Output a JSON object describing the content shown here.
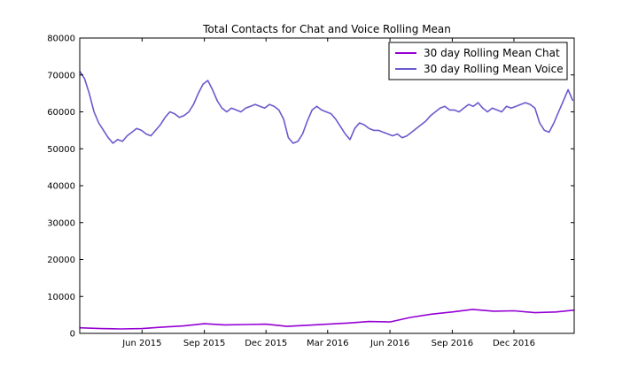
{
  "chart_data": {
    "type": "line",
    "title": "Total Contacts for Chat and Voice Rolling Mean",
    "xlabel": "",
    "ylabel": "",
    "xlim": [
      "2015-03-01",
      "2017-02-28"
    ],
    "ylim": [
      0,
      80000
    ],
    "grid": false,
    "legend_placement": "top-right",
    "y_ticks": [
      0,
      10000,
      20000,
      30000,
      40000,
      50000,
      60000,
      70000,
      80000
    ],
    "x_ticks": [
      {
        "date": "2015-06-01",
        "label": "Jun 2015"
      },
      {
        "date": "2015-09-01",
        "label": "Sep 2015"
      },
      {
        "date": "2015-12-01",
        "label": "Dec 2015"
      },
      {
        "date": "2016-03-01",
        "label": "Mar 2016"
      },
      {
        "date": "2016-06-01",
        "label": "Jun 2016"
      },
      {
        "date": "2016-09-01",
        "label": "Sep 2016"
      },
      {
        "date": "2016-12-01",
        "label": "Dec 2016"
      }
    ],
    "series": [
      {
        "name": "30 day Rolling Mean Chat",
        "color": "#9400d3",
        "x": [
          "2015-03-01",
          "2015-04-01",
          "2015-05-01",
          "2015-06-01",
          "2015-07-01",
          "2015-08-01",
          "2015-09-01",
          "2015-10-01",
          "2015-11-01",
          "2015-12-01",
          "2016-01-01",
          "2016-02-01",
          "2016-03-01",
          "2016-04-01",
          "2016-05-01",
          "2016-06-01",
          "2016-07-01",
          "2016-08-01",
          "2016-09-01",
          "2016-10-01",
          "2016-11-01",
          "2016-12-01",
          "2017-01-01",
          "2017-02-01",
          "2017-02-28"
        ],
        "y": [
          1500,
          1300,
          1200,
          1300,
          1700,
          2000,
          2600,
          2300,
          2400,
          2500,
          1900,
          2200,
          2500,
          2800,
          3200,
          3100,
          4300,
          5200,
          5800,
          6500,
          6000,
          6100,
          5600,
          5800,
          6300
        ]
      },
      {
        "name": "30 day Rolling Mean Voice",
        "color": "#6a5acd",
        "x": [
          "2015-03-01",
          "2015-03-08",
          "2015-03-15",
          "2015-03-22",
          "2015-03-29",
          "2015-04-05",
          "2015-04-12",
          "2015-04-19",
          "2015-04-26",
          "2015-05-03",
          "2015-05-10",
          "2015-05-17",
          "2015-05-24",
          "2015-05-31",
          "2015-06-07",
          "2015-06-14",
          "2015-06-21",
          "2015-06-28",
          "2015-07-05",
          "2015-07-12",
          "2015-07-19",
          "2015-07-26",
          "2015-08-02",
          "2015-08-09",
          "2015-08-16",
          "2015-08-23",
          "2015-08-30",
          "2015-09-06",
          "2015-09-13",
          "2015-09-20",
          "2015-09-27",
          "2015-10-04",
          "2015-10-11",
          "2015-10-18",
          "2015-10-25",
          "2015-11-01",
          "2015-11-08",
          "2015-11-15",
          "2015-11-22",
          "2015-11-29",
          "2015-12-06",
          "2015-12-13",
          "2015-12-20",
          "2015-12-27",
          "2016-01-03",
          "2016-01-10",
          "2016-01-17",
          "2016-01-24",
          "2016-01-31",
          "2016-02-07",
          "2016-02-14",
          "2016-02-21",
          "2016-02-28",
          "2016-03-06",
          "2016-03-13",
          "2016-03-20",
          "2016-03-27",
          "2016-04-03",
          "2016-04-10",
          "2016-04-17",
          "2016-04-24",
          "2016-05-01",
          "2016-05-08",
          "2016-05-15",
          "2016-05-22",
          "2016-05-29",
          "2016-06-05",
          "2016-06-12",
          "2016-06-19",
          "2016-06-26",
          "2016-07-03",
          "2016-07-10",
          "2016-07-17",
          "2016-07-24",
          "2016-07-31",
          "2016-08-07",
          "2016-08-14",
          "2016-08-21",
          "2016-08-28",
          "2016-09-04",
          "2016-09-11",
          "2016-09-18",
          "2016-09-25",
          "2016-10-02",
          "2016-10-09",
          "2016-10-16",
          "2016-10-23",
          "2016-10-30",
          "2016-11-06",
          "2016-11-13",
          "2016-11-20",
          "2016-11-27",
          "2016-12-04",
          "2016-12-11",
          "2016-12-18",
          "2016-12-25",
          "2017-01-01",
          "2017-01-08",
          "2017-01-15",
          "2017-01-22",
          "2017-01-29",
          "2017-02-05",
          "2017-02-12",
          "2017-02-19",
          "2017-02-26"
        ],
        "y": [
          71000,
          69000,
          65000,
          60000,
          57000,
          55000,
          53000,
          51500,
          52500,
          52000,
          53500,
          54500,
          55500,
          55000,
          54000,
          53500,
          55000,
          56500,
          58500,
          60000,
          59500,
          58500,
          59000,
          60000,
          62000,
          65000,
          67500,
          68500,
          66000,
          63000,
          61000,
          60000,
          61000,
          60500,
          60000,
          61000,
          61500,
          62000,
          61500,
          61000,
          62000,
          61500,
          60500,
          58000,
          53000,
          51500,
          52000,
          54000,
          57500,
          60500,
          61500,
          60500,
          60000,
          59500,
          58000,
          56000,
          54000,
          52500,
          55500,
          57000,
          56500,
          55500,
          55000,
          55000,
          54500,
          54000,
          53500,
          54000,
          53000,
          53500,
          54500,
          55500,
          56500,
          57500,
          59000,
          60000,
          61000,
          61500,
          60500,
          60500,
          60000,
          61000,
          62000,
          61500,
          62500,
          61000,
          60000,
          61000,
          60500,
          60000,
          61500,
          61000,
          61500,
          62000,
          62500,
          62000,
          61000,
          57000,
          55000,
          54500,
          57000,
          60000,
          63000,
          66000,
          63000
        ]
      }
    ]
  }
}
